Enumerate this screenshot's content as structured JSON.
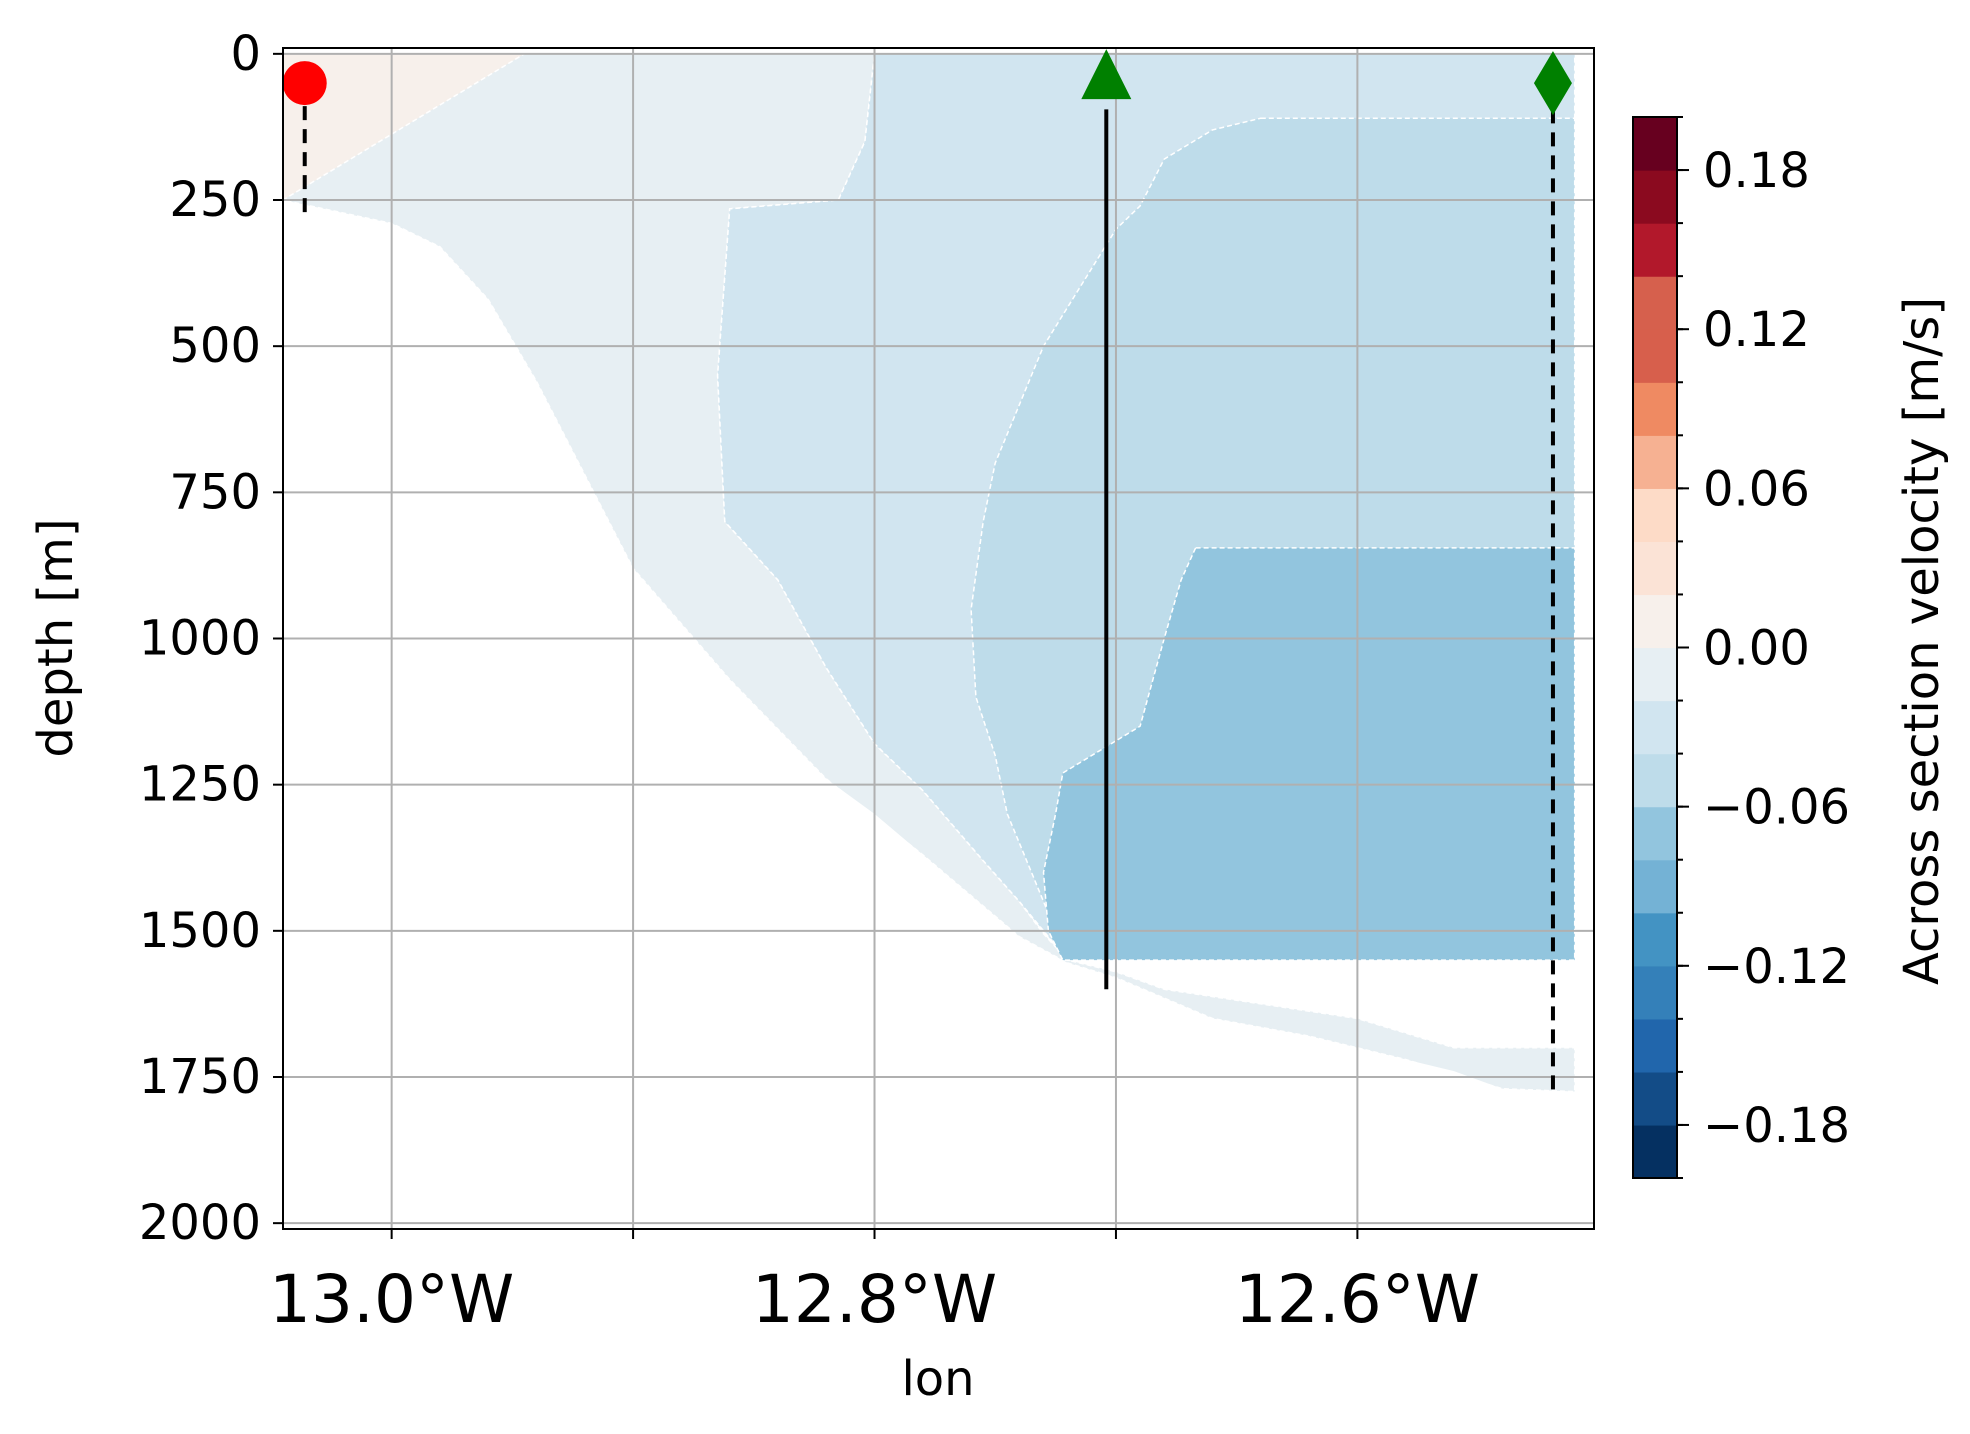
{
  "chart_data": {
    "type": "heatmap",
    "title": "",
    "xlabel": "lon",
    "ylabel": "depth [m]",
    "xlim": [
      -13.045,
      -12.502
    ],
    "ylim": [
      2010,
      -10
    ],
    "y_inverted": true,
    "grid": true,
    "xticks": [
      {
        "value": -13.0,
        "label": "13.0°W"
      },
      {
        "value": -12.9,
        "label": ""
      },
      {
        "value": -12.8,
        "label": "12.8°W"
      },
      {
        "value": -12.7,
        "label": ""
      },
      {
        "value": -12.6,
        "label": "12.6°W"
      }
    ],
    "yticks": [
      {
        "value": 0,
        "label": "0"
      },
      {
        "value": 250,
        "label": "250"
      },
      {
        "value": 500,
        "label": "500"
      },
      {
        "value": 750,
        "label": "750"
      },
      {
        "value": 1000,
        "label": "1000"
      },
      {
        "value": 1250,
        "label": "1250"
      },
      {
        "value": 1500,
        "label": "1500"
      },
      {
        "value": 1750,
        "label": "1750"
      },
      {
        "value": 2000,
        "label": "2000"
      }
    ],
    "colorbar": {
      "label": "Across section velocity [m/s]",
      "vmin": -0.2,
      "vmax": 0.2,
      "levels": [
        -0.2,
        -0.18,
        -0.16,
        -0.14,
        -0.12,
        -0.1,
        -0.08,
        -0.06,
        -0.04,
        -0.02,
        0.0,
        0.02,
        0.04,
        0.06,
        0.08,
        0.1,
        0.12,
        0.14,
        0.16,
        0.18,
        0.2
      ],
      "colors": [
        "#053061",
        "#134c87",
        "#2166ac",
        "#3480b9",
        "#4393c3",
        "#74b2d5",
        "#92c5de",
        "#bedcea",
        "#d1e5f0",
        "#e7eff3",
        "#f7f0eb",
        "#fbe3d6",
        "#fddbc7",
        "#f6b192",
        "#ef8a62",
        "#d75f4c",
        "#d6604d",
        "#b2182b",
        "#8b0a1f",
        "#67001f"
      ],
      "ticks": [
        {
          "value": 0.18,
          "label": "0.18"
        },
        {
          "value": 0.12,
          "label": "0.12"
        },
        {
          "value": 0.06,
          "label": "0.06"
        },
        {
          "value": 0.0,
          "label": "0.00"
        },
        {
          "value": -0.06,
          "label": "−0.06"
        },
        {
          "value": -0.12,
          "label": "−0.12"
        },
        {
          "value": -0.18,
          "label": "−0.18"
        }
      ]
    },
    "seafloor_depth": [
      {
        "lon": -13.045,
        "depth": 250
      },
      {
        "lon": -13.03,
        "depth": 270
      },
      {
        "lon": -13.0,
        "depth": 290
      },
      {
        "lon": -12.98,
        "depth": 330
      },
      {
        "lon": -12.96,
        "depth": 420
      },
      {
        "lon": -12.94,
        "depth": 560
      },
      {
        "lon": -12.92,
        "depth": 720
      },
      {
        "lon": -12.9,
        "depth": 880
      },
      {
        "lon": -12.88,
        "depth": 980
      },
      {
        "lon": -12.86,
        "depth": 1070
      },
      {
        "lon": -12.84,
        "depth": 1160
      },
      {
        "lon": -12.82,
        "depth": 1240
      },
      {
        "lon": -12.8,
        "depth": 1300
      },
      {
        "lon": -12.78,
        "depth": 1370
      },
      {
        "lon": -12.76,
        "depth": 1440
      },
      {
        "lon": -12.74,
        "depth": 1510
      },
      {
        "lon": -12.72,
        "depth": 1555
      },
      {
        "lon": -12.7,
        "depth": 1580
      },
      {
        "lon": -12.68,
        "depth": 1620
      },
      {
        "lon": -12.66,
        "depth": 1650
      },
      {
        "lon": -12.62,
        "depth": 1680
      },
      {
        "lon": -12.6,
        "depth": 1700
      },
      {
        "lon": -12.58,
        "depth": 1720
      },
      {
        "lon": -12.56,
        "depth": 1740
      },
      {
        "lon": -12.54,
        "depth": 1770
      },
      {
        "lon": -12.51,
        "depth": 1775
      }
    ],
    "regions": [
      {
        "name": "positive-shelf",
        "value": 0.005,
        "polygon": [
          [
            -13.045,
            0
          ],
          [
            -12.945,
            0
          ],
          [
            -12.945,
            250
          ],
          [
            -13.045,
            250
          ]
        ]
      },
      {
        "name": "weak-negative",
        "value": -0.01,
        "polygon": [
          [
            -12.945,
            0
          ],
          [
            -12.8,
            0
          ],
          [
            -12.804,
            150
          ],
          [
            -12.815,
            250
          ],
          [
            -12.86,
            265
          ],
          [
            -12.865,
            550
          ],
          [
            -12.862,
            800
          ],
          [
            -12.84,
            900
          ],
          [
            -12.82,
            1050
          ],
          [
            -12.8,
            1180
          ],
          [
            -12.78,
            1260
          ],
          [
            -12.755,
            1380
          ],
          [
            -12.74,
            1450
          ],
          [
            -12.73,
            1505
          ],
          [
            -12.72,
            1550
          ],
          [
            -12.7,
            1570
          ],
          [
            -12.68,
            1600
          ],
          [
            -12.6,
            1650
          ],
          [
            -12.56,
            1700
          ],
          [
            -12.51,
            1700
          ],
          [
            -12.51,
            1775
          ],
          [
            -12.54,
            1770
          ],
          [
            -12.58,
            1720
          ],
          [
            -12.62,
            1680
          ],
          [
            -12.66,
            1650
          ],
          [
            -12.7,
            1580
          ],
          [
            -12.72,
            1555
          ],
          [
            -12.74,
            1510
          ],
          [
            -12.78,
            1370
          ],
          [
            -12.82,
            1240
          ],
          [
            -12.86,
            1070
          ],
          [
            -12.9,
            880
          ],
          [
            -12.94,
            560
          ],
          [
            -12.96,
            420
          ],
          [
            -12.98,
            330
          ],
          [
            -13.0,
            290
          ],
          [
            -13.045,
            250
          ]
        ]
      },
      {
        "name": "moderate-negative",
        "value": -0.03,
        "polygon": [
          [
            -12.8,
            0
          ],
          [
            -12.51,
            0
          ],
          [
            -12.51,
            1550
          ],
          [
            -12.72,
            1550
          ],
          [
            -12.74,
            1450
          ],
          [
            -12.755,
            1380
          ],
          [
            -12.78,
            1260
          ],
          [
            -12.8,
            1180
          ],
          [
            -12.82,
            1050
          ],
          [
            -12.84,
            900
          ],
          [
            -12.862,
            800
          ],
          [
            -12.865,
            550
          ],
          [
            -12.86,
            265
          ],
          [
            -12.815,
            250
          ],
          [
            -12.804,
            150
          ]
        ]
      },
      {
        "name": "core-negative",
        "value": -0.05,
        "polygon": [
          [
            -12.64,
            110
          ],
          [
            -12.51,
            110
          ],
          [
            -12.51,
            1550
          ],
          [
            -12.72,
            1550
          ],
          [
            -12.725,
            1500
          ],
          [
            -12.735,
            1400
          ],
          [
            -12.745,
            1300
          ],
          [
            -12.75,
            1200
          ],
          [
            -12.758,
            1100
          ],
          [
            -12.76,
            950
          ],
          [
            -12.755,
            800
          ],
          [
            -12.75,
            700
          ],
          [
            -12.74,
            600
          ],
          [
            -12.73,
            500
          ],
          [
            -12.715,
            400
          ],
          [
            -12.7,
            300
          ],
          [
            -12.69,
            260
          ],
          [
            -12.68,
            180
          ],
          [
            -12.66,
            130
          ]
        ]
      },
      {
        "name": "deep-core-negative",
        "value": -0.07,
        "polygon": [
          [
            -12.667,
            845
          ],
          [
            -12.51,
            845
          ],
          [
            -12.51,
            1550
          ],
          [
            -12.722,
            1550
          ],
          [
            -12.728,
            1500
          ],
          [
            -12.73,
            1400
          ],
          [
            -12.725,
            1300
          ],
          [
            -12.722,
            1230
          ],
          [
            -12.69,
            1150
          ],
          [
            -12.68,
            1000
          ],
          [
            -12.673,
            900
          ]
        ]
      }
    ],
    "markers": [
      {
        "name": "start-station",
        "shape": "circle",
        "color": "#ff0000",
        "lon": -13.036,
        "depth": 50,
        "line_style": "dashed",
        "line_to_depth": 280
      },
      {
        "name": "mooring",
        "shape": "triangle",
        "color": "#008000",
        "lon": -12.704,
        "depth": 50,
        "line_style": "solid",
        "line_from_depth": 95,
        "line_to_depth": 1600
      },
      {
        "name": "end-station",
        "shape": "diamond",
        "color": "#008000",
        "lon": -12.519,
        "depth": 50,
        "line_style": "dashed",
        "line_from_depth": 95,
        "line_to_depth": 1785
      }
    ]
  }
}
